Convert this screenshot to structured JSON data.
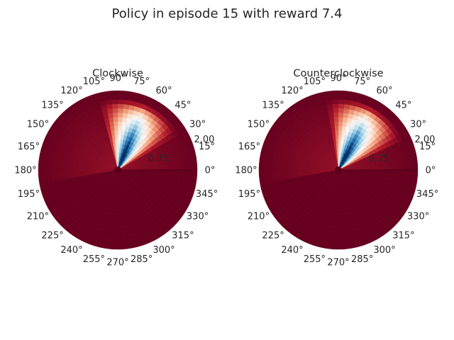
{
  "figure": {
    "title": "Policy in episode 15 with reward 7.4"
  },
  "chart_data": [
    {
      "type": "heatmap",
      "projection": "polar",
      "title": "Clockwise",
      "angle_ticks": [
        "0°",
        "15°",
        "30°",
        "45°",
        "60°",
        "75°",
        "90°",
        "105°",
        "120°",
        "135°",
        "150°",
        "165°",
        "180°",
        "195°",
        "210°",
        "225°",
        "240°",
        "255°",
        "270°",
        "285°",
        "300°",
        "315°",
        "330°",
        "345°"
      ],
      "radial_ticks": [
        "0.75",
        "2.00"
      ],
      "radial_range": [
        0,
        2
      ],
      "angle_range_deg": [
        0,
        360
      ],
      "colormap": "RdBu",
      "grid": false,
      "hotspot_center_deg": 68,
      "hotspot_halfwidth_deg": 38,
      "inner_radius_line_deg": 0
    },
    {
      "type": "heatmap",
      "projection": "polar",
      "title": "Counterclockwise",
      "angle_ticks": [
        "0°",
        "15°",
        "30°",
        "45°",
        "60°",
        "75°",
        "90°",
        "105°",
        "120°",
        "135°",
        "150°",
        "165°",
        "180°",
        "195°",
        "210°",
        "225°",
        "240°",
        "255°",
        "270°",
        "285°",
        "300°",
        "315°",
        "330°",
        "345°"
      ],
      "radial_ticks": [
        "0.75",
        "2.00"
      ],
      "radial_range": [
        0,
        2
      ],
      "angle_range_deg": [
        0,
        360
      ],
      "colormap": "RdBu",
      "grid": false,
      "hotspot_center_deg": 62,
      "hotspot_halfwidth_deg": 38,
      "inner_radius_line_deg": 0
    }
  ]
}
